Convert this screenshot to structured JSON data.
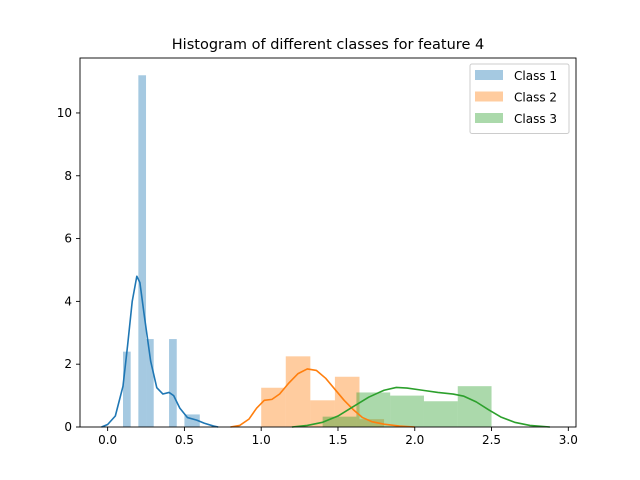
{
  "chart_data": {
    "type": "histogram",
    "title": "Histogram of different classes for feature 4",
    "xlabel": "",
    "ylabel": "",
    "xlim": [
      -0.18,
      3.05
    ],
    "ylim": [
      0,
      11.75
    ],
    "xticks": [
      0.0,
      0.5,
      1.0,
      1.5,
      2.0,
      2.5,
      3.0
    ],
    "xtick_labels": [
      "0.0",
      "0.5",
      "1.0",
      "1.5",
      "2.0",
      "2.5",
      "3.0"
    ],
    "yticks": [
      0,
      2,
      4,
      6,
      8,
      10
    ],
    "ytick_labels": [
      "0",
      "2",
      "4",
      "6",
      "8",
      "10"
    ],
    "grid": false,
    "legend_position": "top-right",
    "series": [
      {
        "name": "Class 1",
        "color": "#1f77b4",
        "bar_alpha": 0.4,
        "bins": [
          {
            "x0": 0.1,
            "x1": 0.15,
            "value": 2.4
          },
          {
            "x0": 0.15,
            "x1": 0.2,
            "value": 0.0
          },
          {
            "x0": 0.2,
            "x1": 0.25,
            "value": 11.2
          },
          {
            "x0": 0.25,
            "x1": 0.3,
            "value": 2.8
          },
          {
            "x0": 0.3,
            "x1": 0.35,
            "value": 0.0
          },
          {
            "x0": 0.35,
            "x1": 0.4,
            "value": 0.0
          },
          {
            "x0": 0.4,
            "x1": 0.45,
            "value": 2.8
          },
          {
            "x0": 0.45,
            "x1": 0.5,
            "value": 0.0
          },
          {
            "x0": 0.5,
            "x1": 0.6,
            "value": 0.4
          }
        ],
        "kde": [
          [
            -0.04,
            0.0
          ],
          [
            0.0,
            0.08
          ],
          [
            0.05,
            0.35
          ],
          [
            0.1,
            1.3
          ],
          [
            0.13,
            2.6
          ],
          [
            0.16,
            4.0
          ],
          [
            0.19,
            4.8
          ],
          [
            0.21,
            4.6
          ],
          [
            0.24,
            3.5
          ],
          [
            0.28,
            2.1
          ],
          [
            0.32,
            1.25
          ],
          [
            0.36,
            1.05
          ],
          [
            0.4,
            1.1
          ],
          [
            0.43,
            1.0
          ],
          [
            0.47,
            0.6
          ],
          [
            0.52,
            0.3
          ],
          [
            0.58,
            0.22
          ],
          [
            0.63,
            0.12
          ],
          [
            0.69,
            0.03
          ],
          [
            0.72,
            0.0
          ]
        ]
      },
      {
        "name": "Class 2",
        "color": "#ff7f0e",
        "bar_alpha": 0.4,
        "bins": [
          {
            "x0": 1.0,
            "x1": 1.16,
            "value": 1.25
          },
          {
            "x0": 1.16,
            "x1": 1.32,
            "value": 2.25
          },
          {
            "x0": 1.32,
            "x1": 1.48,
            "value": 0.85
          },
          {
            "x0": 1.48,
            "x1": 1.64,
            "value": 1.6
          },
          {
            "x0": 1.64,
            "x1": 1.8,
            "value": 0.25
          }
        ],
        "kde": [
          [
            0.8,
            0.0
          ],
          [
            0.86,
            0.05
          ],
          [
            0.92,
            0.25
          ],
          [
            0.97,
            0.6
          ],
          [
            1.02,
            0.85
          ],
          [
            1.07,
            0.88
          ],
          [
            1.12,
            1.05
          ],
          [
            1.18,
            1.4
          ],
          [
            1.24,
            1.7
          ],
          [
            1.3,
            1.85
          ],
          [
            1.36,
            1.8
          ],
          [
            1.42,
            1.55
          ],
          [
            1.48,
            1.2
          ],
          [
            1.54,
            0.85
          ],
          [
            1.6,
            0.55
          ],
          [
            1.66,
            0.3
          ],
          [
            1.72,
            0.17
          ],
          [
            1.8,
            0.09
          ],
          [
            1.9,
            0.03
          ],
          [
            2.0,
            0.0
          ]
        ]
      },
      {
        "name": "Class 3",
        "color": "#2ca02c",
        "bar_alpha": 0.4,
        "bins": [
          {
            "x0": 1.4,
            "x1": 1.62,
            "value": 0.33
          },
          {
            "x0": 1.62,
            "x1": 1.84,
            "value": 1.1
          },
          {
            "x0": 1.84,
            "x1": 2.06,
            "value": 1.0
          },
          {
            "x0": 2.06,
            "x1": 2.28,
            "value": 0.82
          },
          {
            "x0": 2.28,
            "x1": 2.5,
            "value": 1.3
          }
        ],
        "kde": [
          [
            1.2,
            0.0
          ],
          [
            1.3,
            0.05
          ],
          [
            1.4,
            0.15
          ],
          [
            1.5,
            0.35
          ],
          [
            1.6,
            0.65
          ],
          [
            1.7,
            0.95
          ],
          [
            1.8,
            1.17
          ],
          [
            1.88,
            1.26
          ],
          [
            1.95,
            1.24
          ],
          [
            2.05,
            1.17
          ],
          [
            2.15,
            1.1
          ],
          [
            2.25,
            1.05
          ],
          [
            2.32,
            0.98
          ],
          [
            2.4,
            0.8
          ],
          [
            2.48,
            0.55
          ],
          [
            2.56,
            0.32
          ],
          [
            2.65,
            0.15
          ],
          [
            2.75,
            0.05
          ],
          [
            2.88,
            0.0
          ]
        ]
      }
    ]
  }
}
